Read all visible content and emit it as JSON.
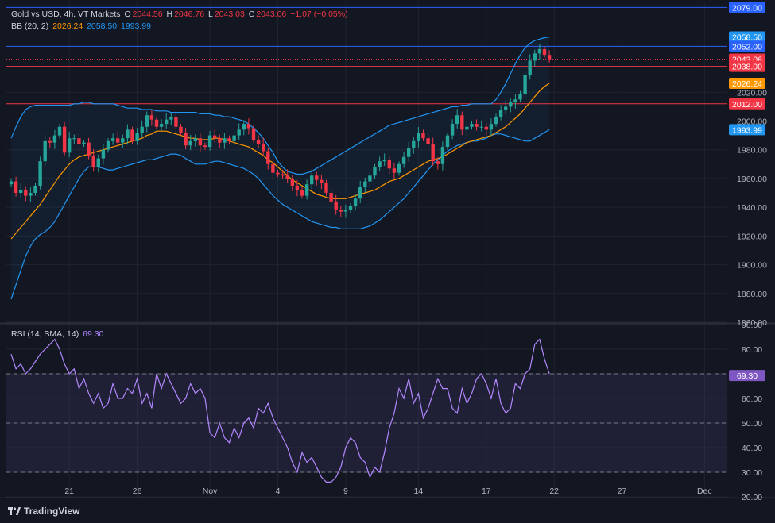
{
  "legend": {
    "title": "Gold vs USD, 4h, VT Markets",
    "o_label": "O",
    "o_val": "2044.56",
    "h_label": "H",
    "h_val": "2046.76",
    "l_label": "L",
    "l_val": "2043.03",
    "c_label": "C",
    "c_val": "2043.06",
    "change": "−1.07 (−0.05%)",
    "bb_label": "BB (20, 2)",
    "bb_basis": "2026.24",
    "bb_upper": "2058.50",
    "bb_lower": "1993.99",
    "rsi_label": "RSI (14, SMA, 14)",
    "rsi_val": "69.30"
  },
  "watermark": "TradingView",
  "colors": {
    "up": "#26a69a",
    "down": "#f23645",
    "basis": "#ff9800",
    "band": "#2196f3",
    "rsi": "#b388ff",
    "hline_blue": "#2962ff",
    "hline_red": "#f23645"
  },
  "chart_data": [
    {
      "type": "candlestick",
      "title": "Gold vs USD, 4h, VT Markets",
      "y_axis_ticks": [
        1860,
        1880,
        1900,
        1920,
        1940,
        1960,
        1980,
        2000,
        2020
      ],
      "ylim": [
        1860,
        2082
      ],
      "x_ticks": [
        {
          "label": "21",
          "index": 12
        },
        {
          "label": "26",
          "index": 26
        },
        {
          "label": "Nov",
          "index": 41
        },
        {
          "label": "4",
          "index": 55
        },
        {
          "label": "9",
          "index": 69
        },
        {
          "label": "14",
          "index": 84
        },
        {
          "label": "17",
          "index": 98
        },
        {
          "label": "22",
          "index": 112
        },
        {
          "label": "27",
          "index": 126
        },
        {
          "label": "Dec",
          "index": 143
        }
      ],
      "close": [
        1958,
        1950,
        1952,
        1948,
        1950,
        1955,
        1972,
        1986,
        1985,
        1990,
        1996,
        1978,
        1988,
        1988,
        1984,
        1985,
        1976,
        1968,
        1974,
        1980,
        1986,
        1988,
        1985,
        1988,
        1994,
        1986,
        1992,
        1996,
        2004,
        2001,
        1996,
        1998,
        2001,
        2003,
        1996,
        1992,
        1983,
        1986,
        1988,
        1983,
        1982,
        1990,
        1988,
        1985,
        1988,
        1986,
        1990,
        1994,
        1998,
        1995,
        1987,
        1984,
        1979,
        1970,
        1964,
        1963,
        1962,
        1960,
        1955,
        1952,
        1948,
        1956,
        1962,
        1959,
        1957,
        1950,
        1944,
        1938,
        1937,
        1938,
        1941,
        1946,
        1954,
        1958,
        1962,
        1968,
        1972,
        1973,
        1967,
        1964,
        1970,
        1975,
        1981,
        1986,
        1992,
        1988,
        1984,
        1972,
        1970,
        1982,
        1990,
        1998,
        2004,
        1994,
        1996,
        1998,
        1996,
        1996,
        1994,
        1998,
        2003,
        2008,
        2010,
        2013,
        2015,
        2019,
        2032,
        2042,
        2047,
        2050,
        2046,
        2043
      ],
      "bb_basis": [
        1918,
        1922,
        1926,
        1930,
        1934,
        1938,
        1942,
        1947,
        1952,
        1957,
        1962,
        1966,
        1970,
        1973,
        1975,
        1976,
        1977,
        1978,
        1979,
        1980,
        1981,
        1982,
        1983,
        1984,
        1985,
        1986,
        1987,
        1988,
        1990,
        1991,
        1993,
        1993,
        1993,
        1992,
        1991,
        1990,
        1989,
        1988,
        1988,
        1987,
        1987,
        1987,
        1988,
        1988,
        1987,
        1986,
        1985,
        1984,
        1983,
        1982,
        1980,
        1978,
        1976,
        1973,
        1971,
        1968,
        1965,
        1962,
        1959,
        1957,
        1955,
        1953,
        1951,
        1949,
        1948,
        1947,
        1946,
        1946,
        1946,
        1946,
        1947,
        1948,
        1949,
        1950,
        1951,
        1952,
        1954,
        1956,
        1958,
        1959,
        1960,
        1962,
        1964,
        1966,
        1968,
        1970,
        1972,
        1973,
        1974,
        1975,
        1977,
        1979,
        1981,
        1983,
        1985,
        1986,
        1987,
        1988,
        1989,
        1990,
        1992,
        1994,
        1996,
        1999,
        2002,
        2005,
        2009,
        2013,
        2017,
        2021,
        2024,
        2026.24
      ],
      "bb_upper": [
        1988,
        1996,
        2003,
        2008,
        2010,
        2011,
        2011,
        2011,
        2011,
        2011,
        2011,
        2011,
        2011,
        2012,
        2012,
        2013,
        2013,
        2012,
        2012,
        2012,
        2012,
        2012,
        2011,
        2010,
        2009,
        2009,
        2009,
        2008,
        2008,
        2008,
        2007,
        2007,
        2007,
        2006,
        2006,
        2006,
        2006,
        2006,
        2006,
        2005,
        2005,
        2005,
        2004,
        2004,
        2003,
        2003,
        2002,
        2001,
        2000,
        1998,
        1995,
        1992,
        1988,
        1983,
        1978,
        1972,
        1968,
        1965,
        1964,
        1963,
        1963,
        1964,
        1965,
        1967,
        1969,
        1971,
        1973,
        1975,
        1977,
        1979,
        1981,
        1983,
        1985,
        1987,
        1989,
        1991,
        1993,
        1995,
        1997,
        1998,
        1999,
        2000,
        2001,
        2002,
        2003,
        2004,
        2005,
        2006,
        2007,
        2008,
        2009,
        2010,
        2010,
        2011,
        2011,
        2012,
        2012,
        2012,
        2012,
        2012,
        2015,
        2020,
        2026,
        2033,
        2040,
        2046,
        2051,
        2054,
        2056,
        2057,
        2058,
        2058.5
      ],
      "bb_lower": [
        1876,
        1886,
        1896,
        1906,
        1913,
        1918,
        1921,
        1923,
        1926,
        1930,
        1936,
        1942,
        1948,
        1954,
        1960,
        1965,
        1968,
        1968,
        1968,
        1967,
        1966,
        1966,
        1967,
        1968,
        1969,
        1970,
        1971,
        1972,
        1973,
        1973,
        1974,
        1975,
        1976,
        1977,
        1977,
        1976,
        1974,
        1972,
        1970,
        1970,
        1970,
        1971,
        1972,
        1972,
        1971,
        1970,
        1969,
        1968,
        1967,
        1965,
        1963,
        1960,
        1956,
        1952,
        1948,
        1945,
        1942,
        1940,
        1938,
        1936,
        1934,
        1932,
        1930,
        1929,
        1928,
        1927,
        1926,
        1926,
        1925,
        1925,
        1925,
        1925,
        1925,
        1926,
        1927,
        1929,
        1931,
        1934,
        1937,
        1940,
        1943,
        1946,
        1950,
        1954,
        1958,
        1962,
        1966,
        1970,
        1973,
        1976,
        1979,
        1981,
        1983,
        1984,
        1985,
        1986,
        1986,
        1987,
        1988,
        1990,
        1991,
        1991,
        1990,
        1989,
        1988,
        1987,
        1986,
        1986,
        1988,
        1990,
        1992,
        1993.99
      ],
      "price_labels": [
        {
          "label": "2079.00",
          "value": 2079.0,
          "color": "#2962ff",
          "line": true
        },
        {
          "label": "2058.50",
          "value": 2058.5,
          "color": "#2196f3",
          "line": false
        },
        {
          "label": "2052.00",
          "value": 2052.0,
          "color": "#2962ff",
          "line": true
        },
        {
          "label": "2043.06",
          "value": 2043.06,
          "color": "#f23645",
          "line": false
        },
        {
          "label": "2038.00",
          "value": 2038.0,
          "color": "#f23645",
          "line": true
        },
        {
          "label": "2026.24",
          "value": 2026.24,
          "color": "#ff9800",
          "line": false
        },
        {
          "label": "2012.00",
          "value": 2012.0,
          "color": "#f23645",
          "line": true
        },
        {
          "label": "1993.99",
          "value": 1993.99,
          "color": "#2196f3",
          "line": false
        }
      ]
    },
    {
      "type": "line",
      "title": "RSI (14, SMA, 14)",
      "y_axis_ticks": [
        20,
        30,
        40,
        50,
        60,
        70,
        80,
        90
      ],
      "ylim": [
        20,
        90
      ],
      "levels": [
        70,
        50,
        30
      ],
      "last_value": 69.3,
      "values": [
        78,
        72,
        74,
        70,
        72,
        75,
        78,
        80,
        82,
        84,
        80,
        74,
        70,
        72,
        64,
        68,
        62,
        58,
        62,
        56,
        58,
        66,
        60,
        60,
        64,
        62,
        68,
        58,
        62,
        56,
        70,
        64,
        70,
        66,
        62,
        58,
        60,
        66,
        62,
        64,
        60,
        46,
        44,
        50,
        44,
        42,
        48,
        44,
        50,
        52,
        48,
        56,
        54,
        58,
        52,
        48,
        44,
        40,
        34,
        30,
        38,
        34,
        36,
        32,
        28,
        26,
        26,
        28,
        32,
        40,
        44,
        42,
        36,
        34,
        28,
        32,
        30,
        38,
        48,
        54,
        64,
        60,
        68,
        58,
        62,
        52,
        56,
        62,
        68,
        64,
        64,
        56,
        54,
        64,
        58,
        62,
        68,
        70,
        66,
        60,
        68,
        58,
        54,
        56,
        66,
        64,
        70,
        72,
        82,
        84,
        76,
        70
      ]
    }
  ]
}
